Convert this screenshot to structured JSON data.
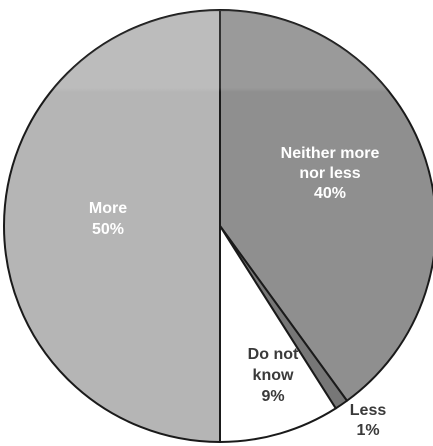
{
  "chart_data": {
    "type": "pie",
    "title": "",
    "slices": [
      {
        "label": "Neither more nor less",
        "value": 40,
        "value_label": "40%",
        "color": "#8f8f8f",
        "label_color": "#ffffff"
      },
      {
        "label": "Less",
        "value": 1,
        "value_label": "1%",
        "color": "#777777",
        "label_color": "#3a3a3a"
      },
      {
        "label": "Do not know",
        "value": 9,
        "value_label": "9%",
        "color": "#ffffff",
        "label_color": "#3a3a3a"
      },
      {
        "label": "More",
        "value": 50,
        "value_label": "50%",
        "color": "#b5b5b5",
        "label_color": "#ffffff"
      }
    ],
    "start_angle_deg": 0,
    "direction": "clockwise",
    "legend": "none"
  }
}
